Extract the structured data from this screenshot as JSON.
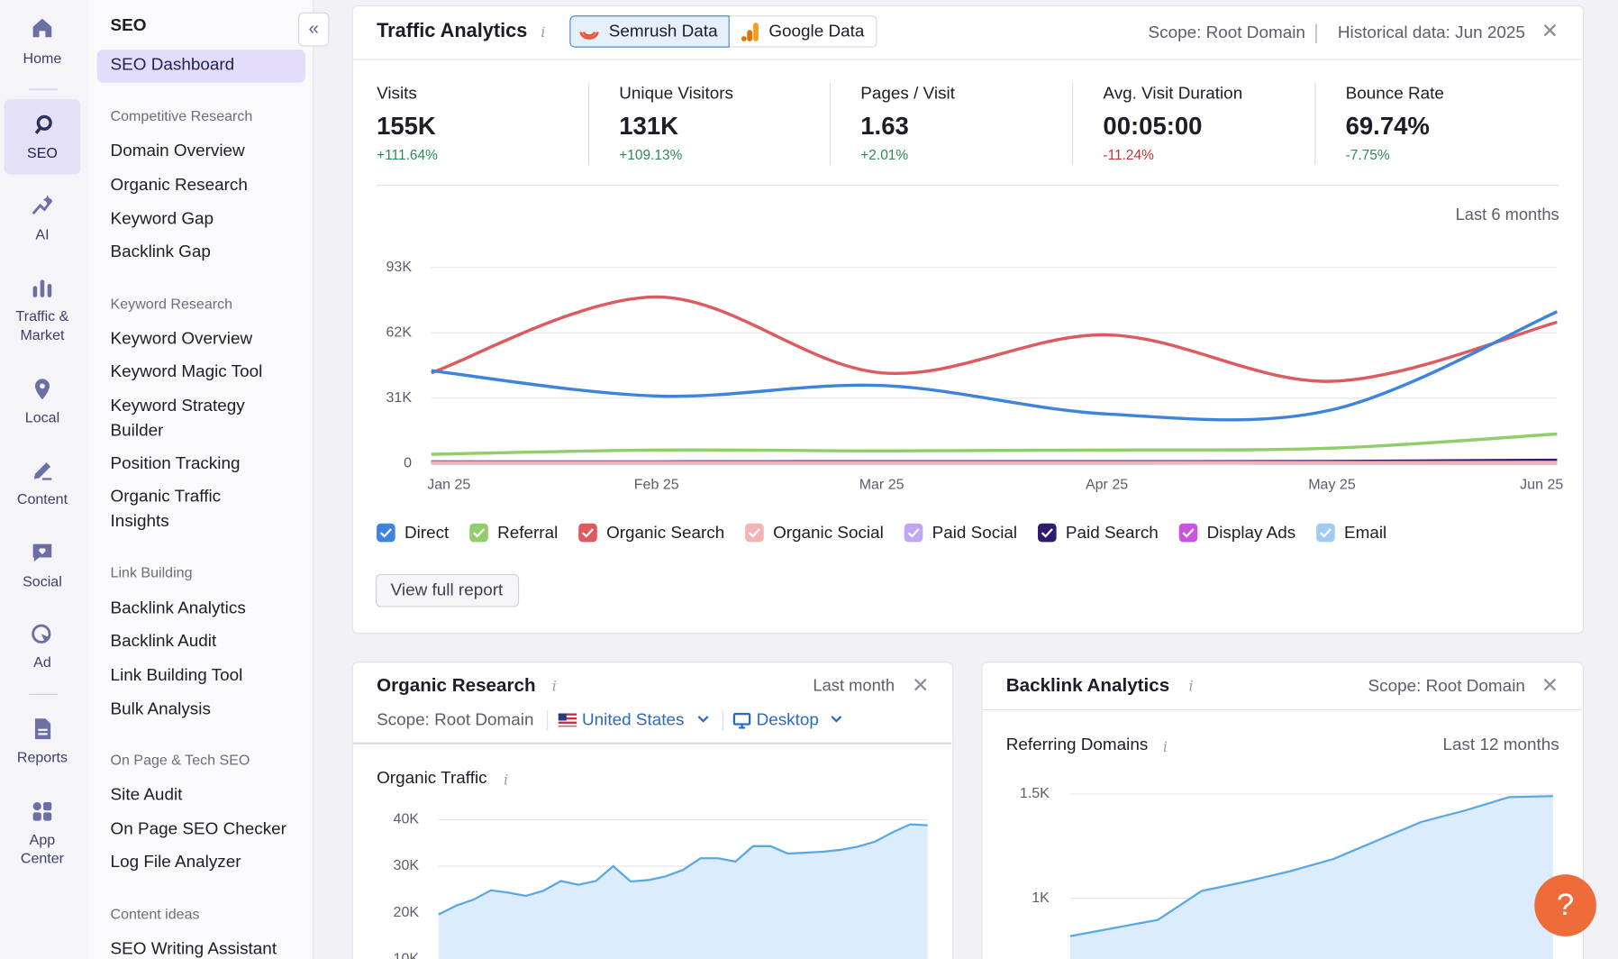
{
  "rail": [
    "Home",
    "SEO",
    "AI",
    "Traffic & Market",
    "Local",
    "Content",
    "Social",
    "Ad",
    "Reports",
    "App Center"
  ],
  "sidebar": {
    "title": "SEO",
    "active": "SEO Dashboard",
    "sections": [
      {
        "heading": "Competitive Research",
        "items": [
          "Domain Overview",
          "Organic Research",
          "Keyword Gap",
          "Backlink Gap"
        ]
      },
      {
        "heading": "Keyword Research",
        "items": [
          "Keyword Overview",
          "Keyword Magic Tool",
          "Keyword Strategy Builder",
          "Position Tracking",
          "Organic Traffic Insights"
        ]
      },
      {
        "heading": "Link Building",
        "items": [
          "Backlink Analytics",
          "Backlink Audit",
          "Link Building Tool",
          "Bulk Analysis"
        ]
      },
      {
        "heading": "On Page & Tech SEO",
        "items": [
          "Site Audit",
          "On Page SEO Checker",
          "Log File Analyzer"
        ]
      },
      {
        "heading": "Content ideas",
        "items": [
          "SEO Writing Assistant"
        ]
      }
    ]
  },
  "traffic_analytics": {
    "title": "Traffic Analytics",
    "tabs": [
      "Semrush Data",
      "Google Data"
    ],
    "scope": "Scope: Root Domain",
    "historical": "Historical data: Jun 2025",
    "metrics": [
      {
        "label": "Visits",
        "value": "155K",
        "change": "+111.64%",
        "color": "#2b8a57"
      },
      {
        "label": "Unique Visitors",
        "value": "131K",
        "change": "+109.13%",
        "color": "#2b8a57"
      },
      {
        "label": "Pages / Visit",
        "value": "1.63",
        "change": "+2.01%",
        "color": "#2b8a57"
      },
      {
        "label": "Avg. Visit Duration",
        "value": "00:05:00",
        "change": "-11.24%",
        "color": "#c0323a"
      },
      {
        "label": "Bounce Rate",
        "value": "69.74%",
        "change": "-7.75%",
        "color": "#2b8a57"
      }
    ],
    "period": "Last 6 months",
    "button": "View full report"
  },
  "organic_research": {
    "title": "Organic Research",
    "period": "Last month",
    "scope": "Scope: Root Domain",
    "country": "United States",
    "device": "Desktop"
  },
  "backlink_analytics": {
    "title": "Backlink Analytics",
    "scope": "Scope: Root Domain",
    "period": "Last 12 months"
  },
  "help": "?",
  "chart_data": [
    {
      "type": "line",
      "categories": [
        "Jan 25",
        "Feb 25",
        "Mar 25",
        "Apr 25",
        "May 25",
        "Jun 25"
      ],
      "ylim": [
        0,
        93000
      ],
      "yticks": [
        0,
        {
          "value": 31000,
          "label": "31K"
        },
        {
          "value": 62000,
          "label": "62K"
        },
        {
          "value": 93000,
          "label": "93K"
        }
      ],
      "grid": true,
      "series": [
        {
          "name": "Direct",
          "color": "#3d84dc",
          "values": [
            44000,
            32000,
            37000,
            23500,
            25500,
            72000
          ]
        },
        {
          "name": "Referral",
          "color": "#8fce6a",
          "values": [
            4400,
            6400,
            6000,
            6400,
            7300,
            14000
          ]
        },
        {
          "name": "Organic Search",
          "color": "#dd5a5e",
          "values": [
            43000,
            79000,
            43000,
            61000,
            39000,
            67000
          ]
        },
        {
          "name": "Organic Social",
          "color": "#f4b3b5",
          "values": [
            300,
            300,
            300,
            300,
            300,
            400
          ]
        },
        {
          "name": "Paid Social",
          "color": "#c2a5f3",
          "values": [
            500,
            500,
            500,
            500,
            500,
            600
          ]
        },
        {
          "name": "Paid Search",
          "color": "#2e1b6d",
          "values": [
            800,
            800,
            900,
            900,
            1000,
            1600
          ]
        },
        {
          "name": "Display Ads",
          "color": "#c955de",
          "values": [
            200,
            200,
            200,
            200,
            200,
            200
          ]
        },
        {
          "name": "Email",
          "color": "#a0ccf1",
          "values": [
            400,
            400,
            400,
            400,
            400,
            400
          ]
        }
      ]
    },
    {
      "type": "area",
      "title": "Organic Traffic",
      "color": "#5aa8e6",
      "categories": [
        null,
        null,
        null,
        null,
        null,
        null,
        null,
        null,
        null,
        null,
        null,
        null,
        null,
        null,
        null,
        null,
        null,
        null,
        null,
        null,
        null,
        null,
        null,
        null,
        null,
        null,
        null,
        null,
        null
      ],
      "values": [
        19600,
        21500,
        22800,
        24800,
        24300,
        23600,
        24700,
        26800,
        26000,
        26800,
        30000,
        26700,
        27000,
        27800,
        29200,
        31700,
        31700,
        31000,
        34300,
        34300,
        32700,
        32900,
        33100,
        33500,
        34200,
        35300,
        37300,
        39000,
        38800
      ],
      "ylim": [
        10000,
        42000
      ],
      "yticks": [
        {
          "value": 10000,
          "label": "10K"
        },
        {
          "value": 20000,
          "label": "20K"
        },
        {
          "value": 30000,
          "label": "30K"
        },
        {
          "value": 40000,
          "label": "40K"
        }
      ],
      "grid": true
    },
    {
      "type": "area",
      "title": "Referring Domains",
      "color": "#5aa8e6",
      "categories": [
        null,
        null,
        null,
        null,
        null,
        null,
        null,
        null,
        null,
        null,
        null,
        null
      ],
      "values": [
        818,
        857,
        896,
        1035,
        1079,
        1129,
        1188,
        1277,
        1366,
        1421,
        1485,
        1490
      ],
      "ylim": [
        700,
        1550
      ],
      "yticks": [
        {
          "value": 1000,
          "label": "1K"
        },
        {
          "value": 1500,
          "label": "1.5K"
        }
      ],
      "grid": true
    }
  ]
}
